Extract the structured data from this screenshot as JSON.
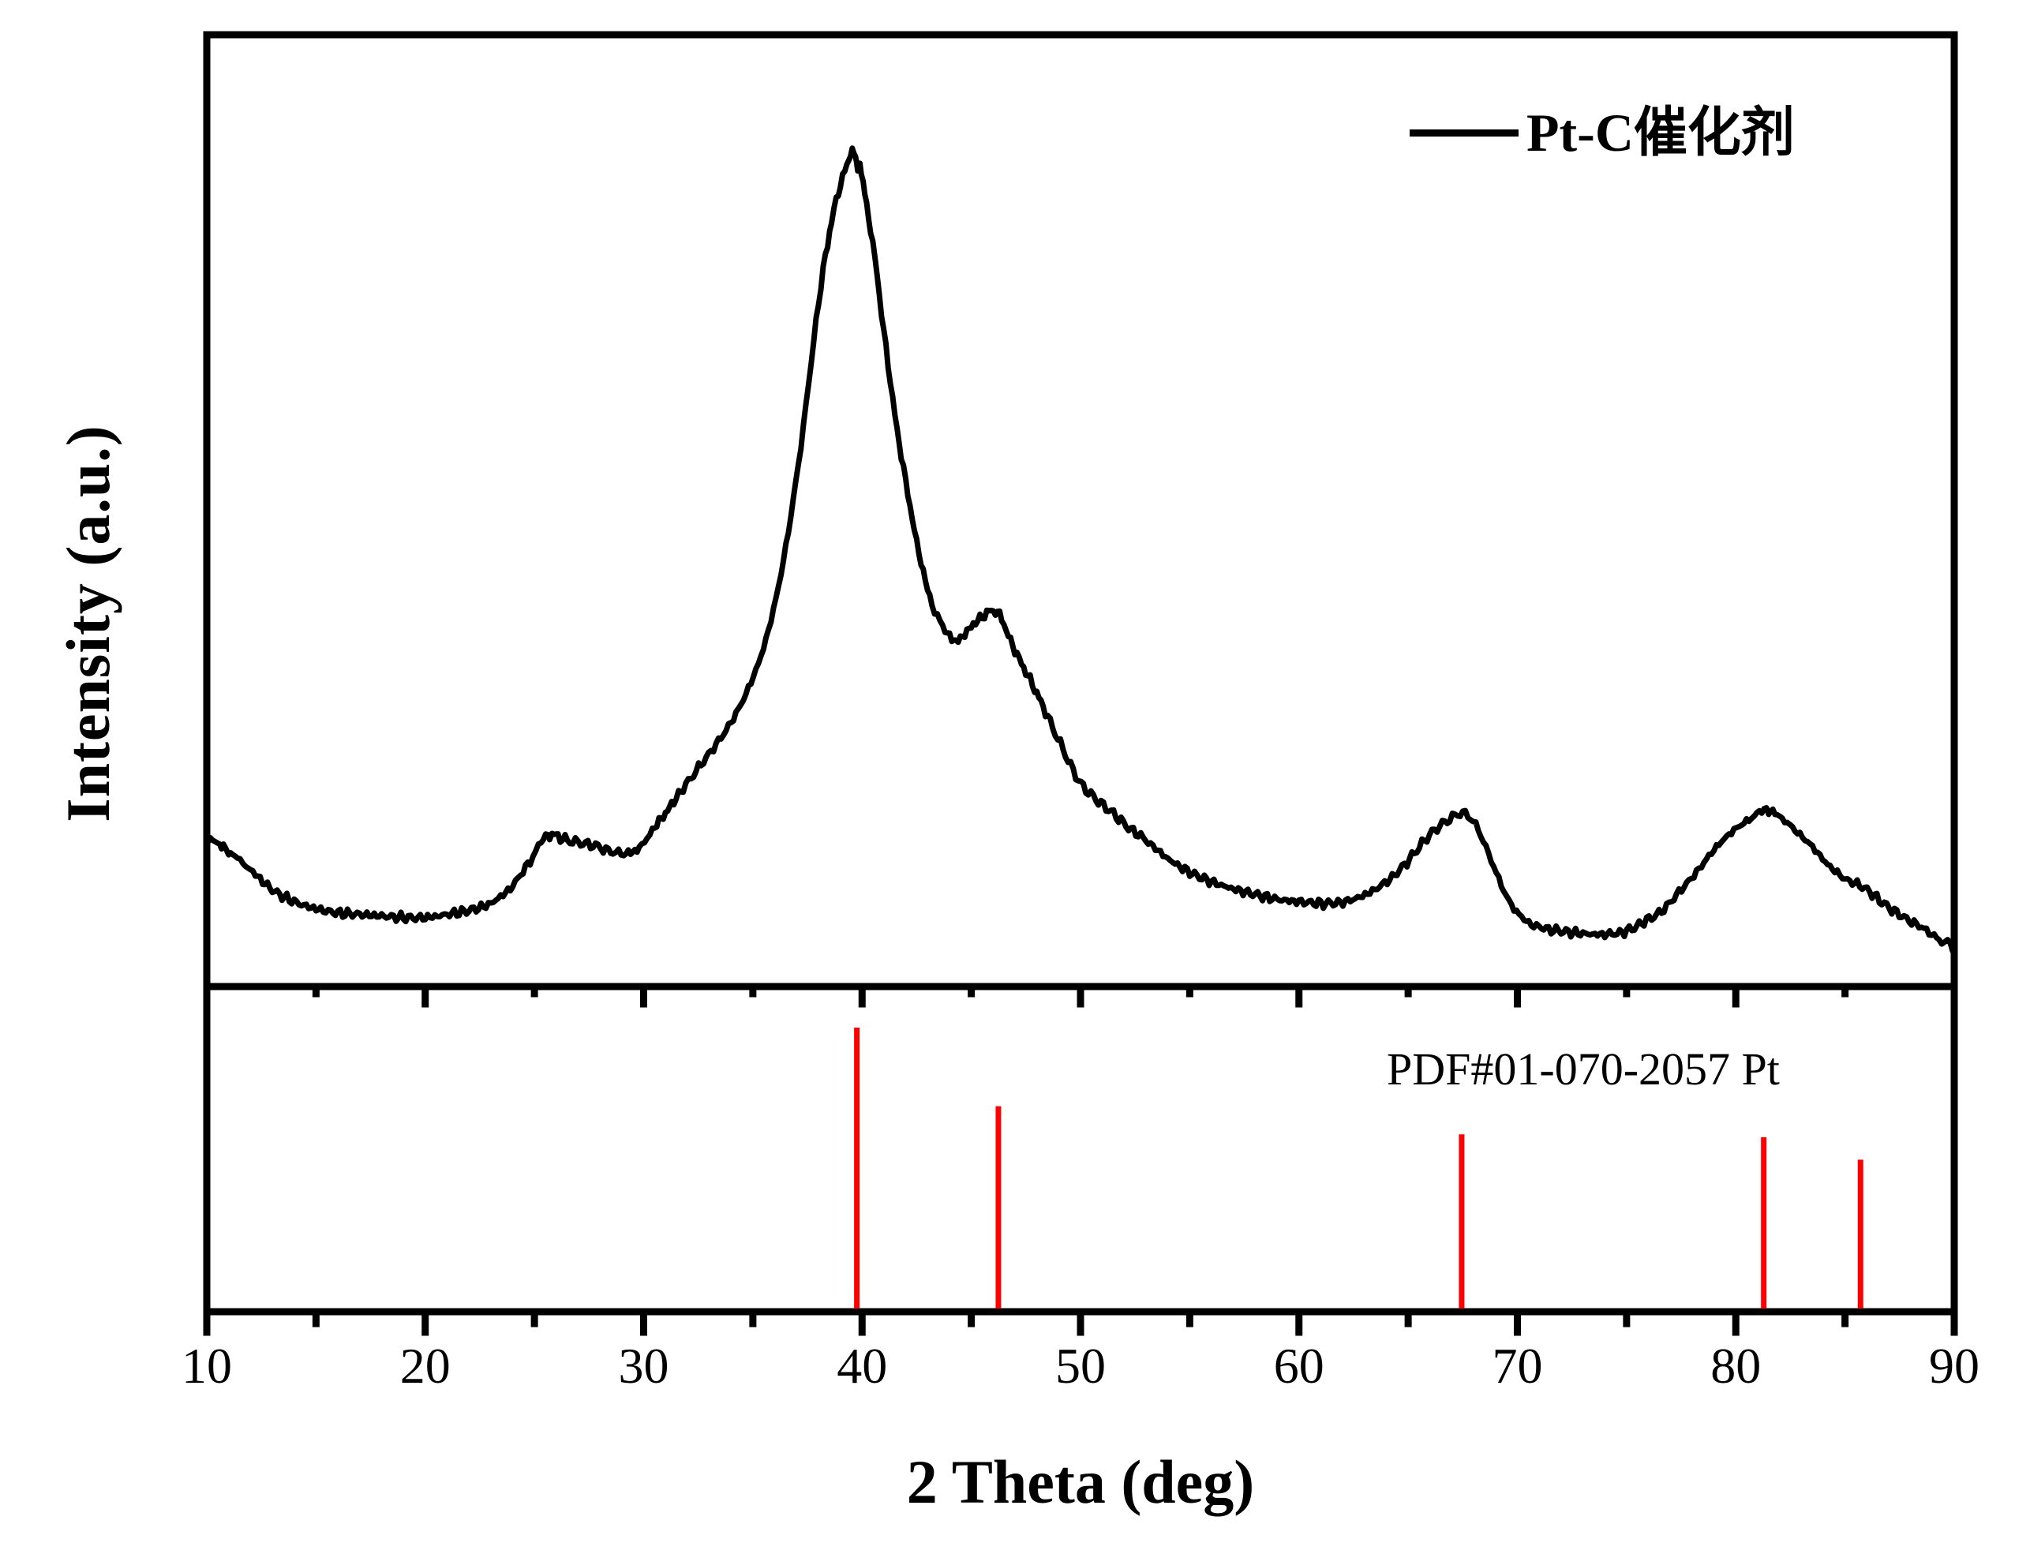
{
  "chart_data": {
    "type": "line",
    "title": "",
    "xlabel": "2 Theta (deg)",
    "ylabel": "Intensity (a.u.)",
    "xlim": [
      10,
      90
    ],
    "x_major_ticks": [
      10,
      20,
      30,
      40,
      50,
      60,
      70,
      80,
      90
    ],
    "x_minor_ticks": [
      15,
      25,
      35,
      45,
      55,
      65,
      75,
      85
    ],
    "y_axis_note": "arbitrary units, no y ticks",
    "grid": "off",
    "legend_position": "top-right inside",
    "frame_color": "#000000",
    "series": [
      {
        "name": "Pt-C催化剂",
        "color": "#000000",
        "noise_amplitude": 0.6,
        "points": [
          [
            10,
            13.6
          ],
          [
            10.5,
            13.1
          ],
          [
            11,
            12.1
          ],
          [
            12,
            9.7
          ],
          [
            13,
            7.2
          ],
          [
            14,
            5.7
          ],
          [
            15,
            4.8
          ],
          [
            16,
            4.3
          ],
          [
            17,
            4.1
          ],
          [
            18,
            3.9
          ],
          [
            19,
            3.7
          ],
          [
            20,
            3.7
          ],
          [
            21,
            4.1
          ],
          [
            22,
            4.6
          ],
          [
            23,
            5.5
          ],
          [
            24,
            7.7
          ],
          [
            24.8,
            10.9
          ],
          [
            25.4,
            13.6
          ],
          [
            25.8,
            14.1
          ],
          [
            26.3,
            13.6
          ],
          [
            27,
            13.1
          ],
          [
            27.8,
            12.7
          ],
          [
            28.6,
            11.9
          ],
          [
            29.2,
            11.8
          ],
          [
            29.8,
            12.4
          ],
          [
            30.4,
            14.7
          ],
          [
            31,
            16.8
          ],
          [
            31.6,
            19.1
          ],
          [
            32.4,
            22.1
          ],
          [
            33.2,
            25.0
          ],
          [
            34,
            28.2
          ],
          [
            34.8,
            32.5
          ],
          [
            35.6,
            38.6
          ],
          [
            36.4,
            48.5
          ],
          [
            37.2,
            62.9
          ],
          [
            38,
            80.7
          ],
          [
            38.6,
            91.1
          ],
          [
            39,
            95.5
          ],
          [
            39.3,
            98.0
          ],
          [
            39.55,
            100.0
          ],
          [
            39.7,
            98.8
          ],
          [
            39.8,
            97.8
          ],
          [
            39.9,
            98.4
          ],
          [
            40.05,
            95.8
          ],
          [
            40.3,
            91.6
          ],
          [
            40.6,
            86.1
          ],
          [
            41,
            77.2
          ],
          [
            41.5,
            66.8
          ],
          [
            42,
            58.4
          ],
          [
            42.6,
            49.5
          ],
          [
            43.2,
            43.1
          ],
          [
            43.8,
            39.8
          ],
          [
            44.3,
            38.4
          ],
          [
            44.8,
            39.6
          ],
          [
            45.3,
            41.0
          ],
          [
            45.9,
            42.1
          ],
          [
            46.3,
            41.6
          ],
          [
            46.8,
            38.4
          ],
          [
            47.3,
            35.6
          ],
          [
            47.9,
            32.4
          ],
          [
            48.5,
            28.9
          ],
          [
            49.2,
            24.8
          ],
          [
            49.9,
            21.0
          ],
          [
            50.6,
            18.8
          ],
          [
            51.4,
            17.0
          ],
          [
            52.2,
            15.0
          ],
          [
            53,
            13.4
          ],
          [
            54,
            11.1
          ],
          [
            55,
            9.4
          ],
          [
            56,
            8.2
          ],
          [
            57,
            7.3
          ],
          [
            58,
            6.6
          ],
          [
            59,
            6.0
          ],
          [
            60,
            5.7
          ],
          [
            61,
            5.5
          ],
          [
            61.9,
            5.6
          ],
          [
            62.8,
            6.3
          ],
          [
            63.7,
            7.6
          ],
          [
            64.6,
            9.6
          ],
          [
            65.4,
            12.2
          ],
          [
            66.2,
            14.7
          ],
          [
            66.9,
            16.0
          ],
          [
            67.5,
            16.8
          ],
          [
            68.1,
            15.3
          ],
          [
            68.8,
            10.9
          ],
          [
            69.5,
            6.4
          ],
          [
            70.2,
            3.7
          ],
          [
            71,
            2.5
          ],
          [
            72,
            2.0
          ],
          [
            73,
            1.7
          ],
          [
            74,
            1.6
          ],
          [
            75,
            2.0
          ],
          [
            75.8,
            3.2
          ],
          [
            76.6,
            4.5
          ],
          [
            77.4,
            6.9
          ],
          [
            78.2,
            9.4
          ],
          [
            79,
            12.2
          ],
          [
            79.8,
            14.4
          ],
          [
            80.6,
            16.0
          ],
          [
            81.3,
            17.2
          ],
          [
            81.9,
            16.6
          ],
          [
            82.6,
            14.9
          ],
          [
            83.4,
            12.9
          ],
          [
            84.2,
            10.4
          ],
          [
            85,
            8.6
          ],
          [
            85.9,
            7.4
          ],
          [
            86.8,
            5.4
          ],
          [
            87.7,
            3.7
          ],
          [
            88.5,
            2.5
          ],
          [
            89.3,
            1.0
          ],
          [
            90,
            0.0
          ]
        ]
      }
    ],
    "reference_pattern": {
      "label": "PDF#01-070-2057 Pt",
      "color": "#FF0000",
      "peaks": [
        {
          "two_theta": 39.76,
          "rel_intensity": 100
        },
        {
          "two_theta": 46.24,
          "rel_intensity": 72
        },
        {
          "two_theta": 67.45,
          "rel_intensity": 62
        },
        {
          "two_theta": 81.28,
          "rel_intensity": 61
        },
        {
          "two_theta": 85.71,
          "rel_intensity": 53
        }
      ]
    }
  }
}
